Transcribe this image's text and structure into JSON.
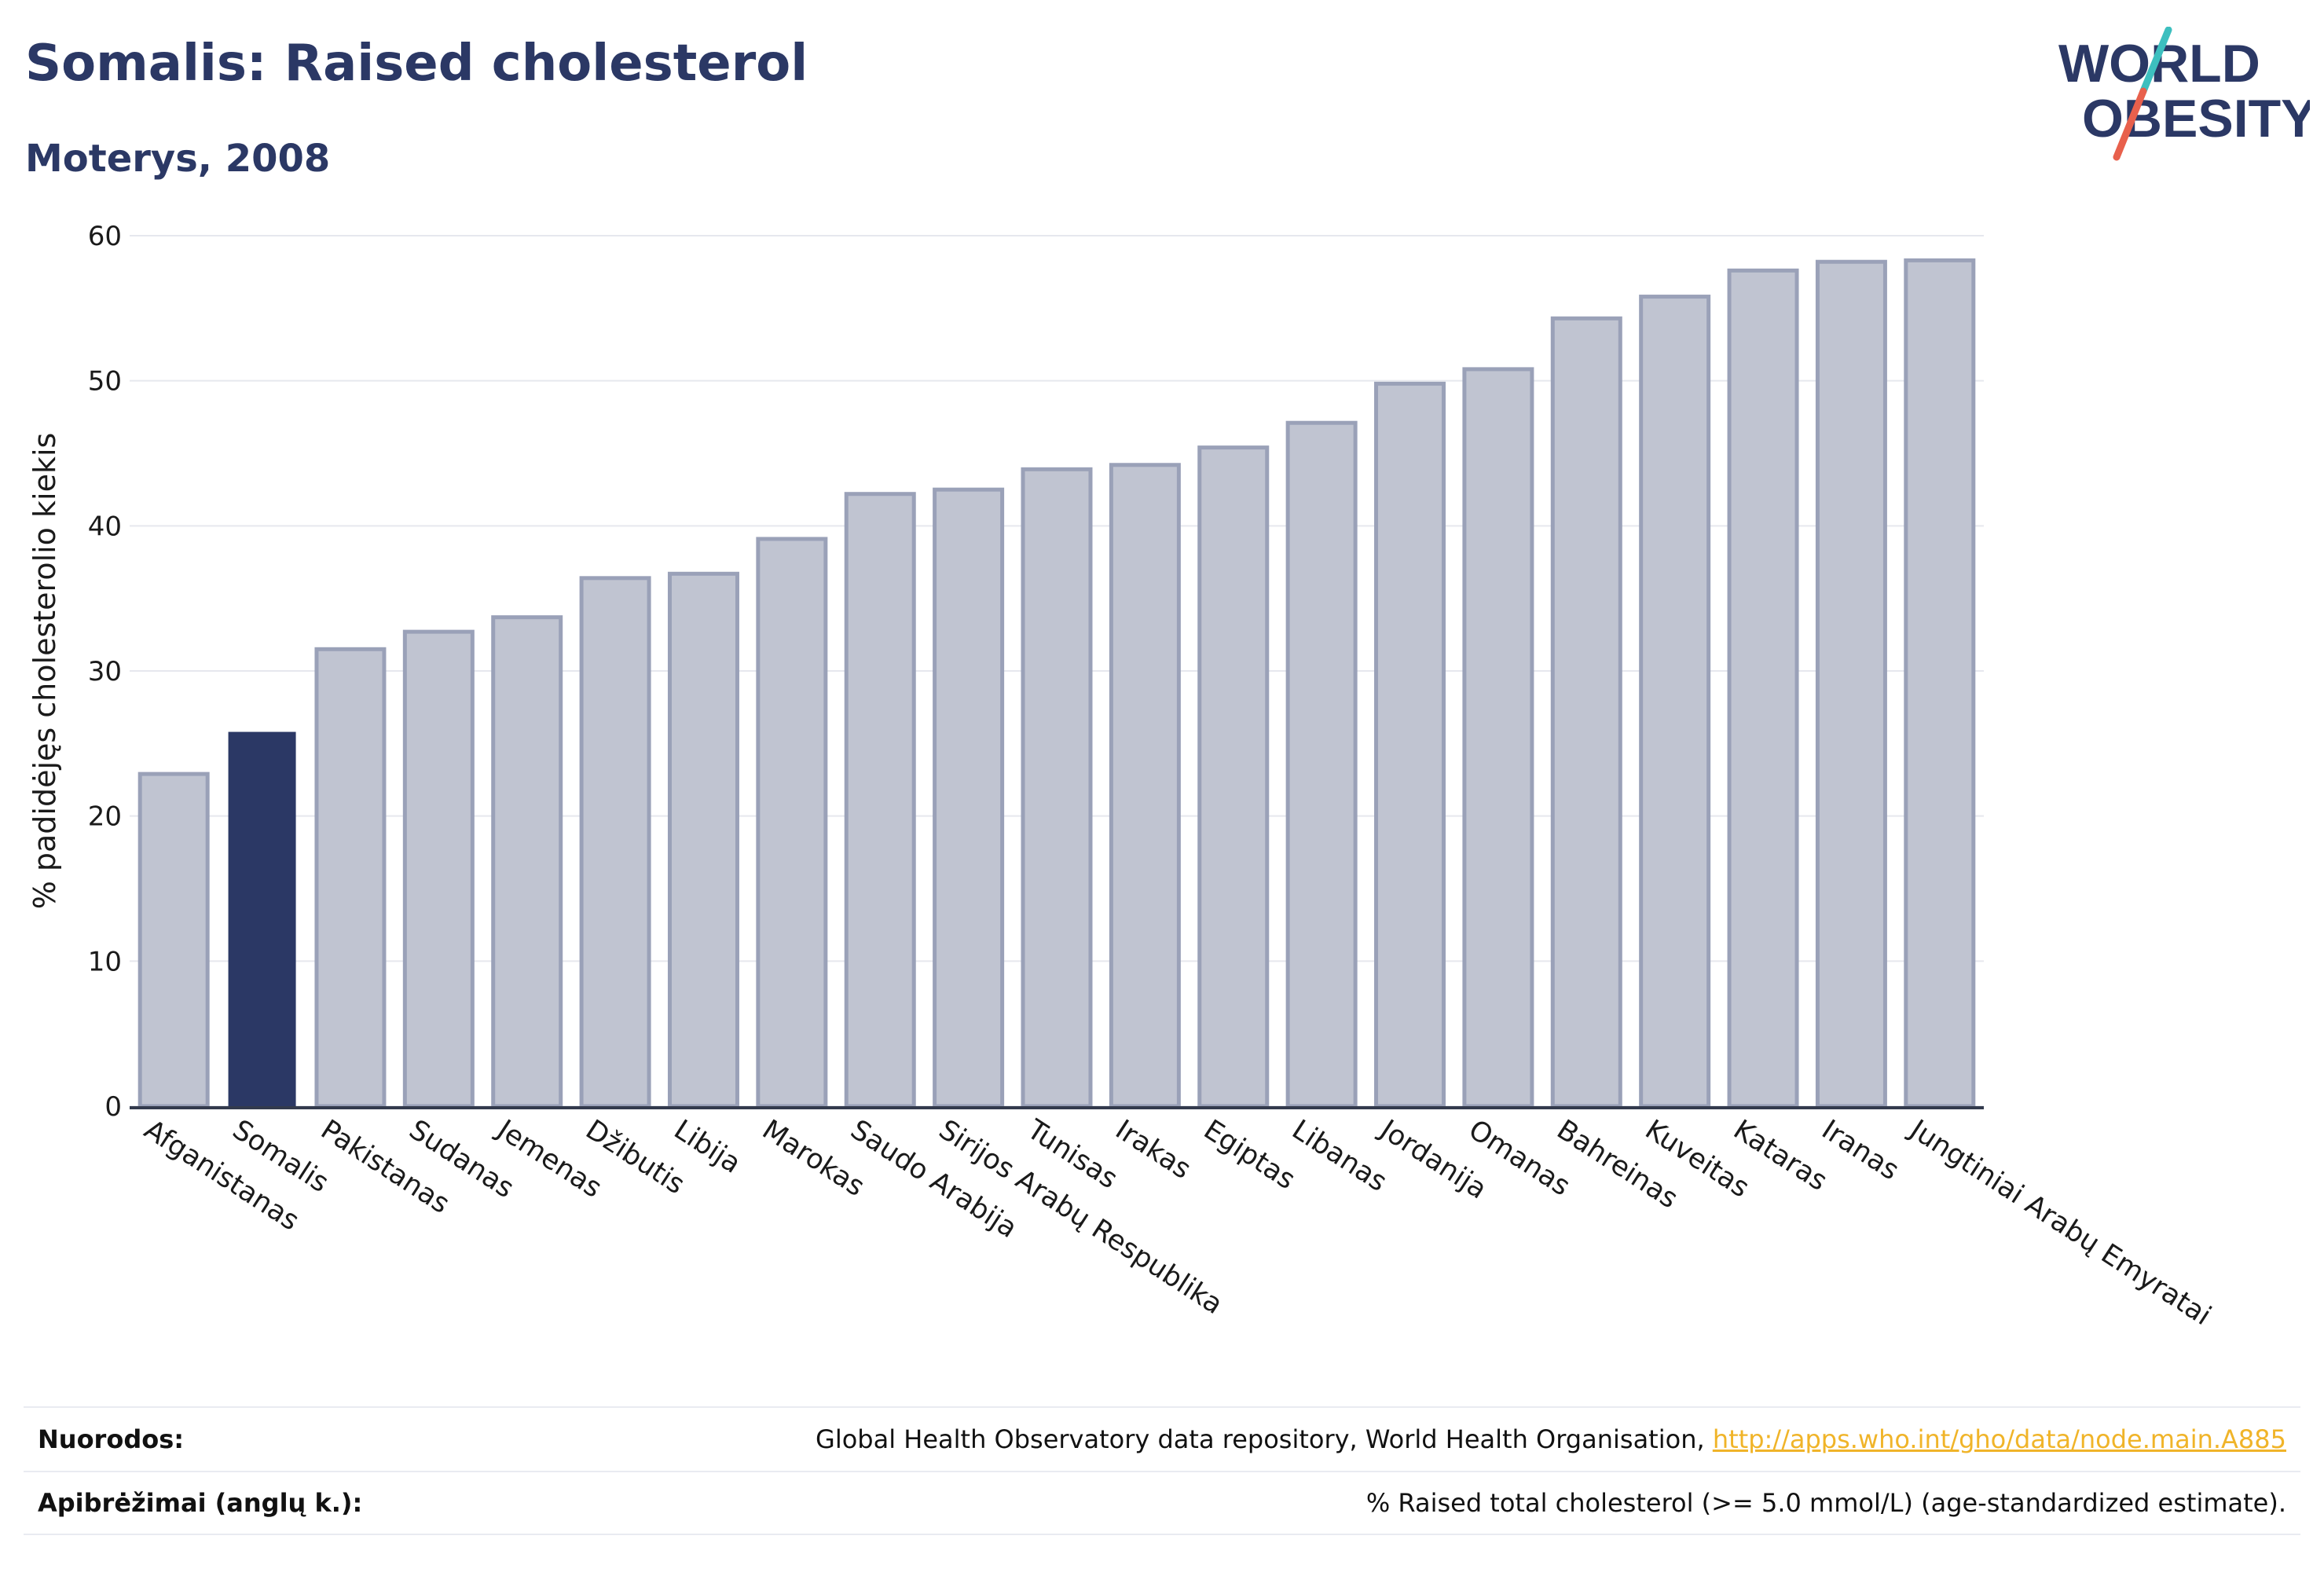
{
  "header": {
    "title": "Somalis: Raised cholesterol",
    "subtitle": "Moterys, 2008"
  },
  "logo": {
    "line1": "WORLD",
    "line2": "OBESITY",
    "slash_colors": [
      "#3dbfbf",
      "#e8604c"
    ]
  },
  "colors": {
    "bar": "#c0c4d1",
    "bar_border": "#9aa1b8",
    "highlight": "#2b3865",
    "text_primary": "#2b3865",
    "link": "#f0b429"
  },
  "chart_data": {
    "type": "bar",
    "categories": [
      "Afganistanas",
      "Somalis",
      "Pakistanas",
      "Sudanas",
      "Jemenas",
      "Džibutis",
      "Libija",
      "Marokas",
      "Saudo Arabija",
      "Sirijos Arabų Respublika",
      "Tunisas",
      "Irakas",
      "Egiptas",
      "Libanas",
      "Jordanija",
      "Omanas",
      "Bahreinas",
      "Kuveitas",
      "Kataras",
      "Iranas",
      "Jungtiniai Arabų Emyratai"
    ],
    "values": [
      22.9,
      25.8,
      31.5,
      32.7,
      33.7,
      36.4,
      36.7,
      39.1,
      42.2,
      42.5,
      43.9,
      44.2,
      45.4,
      47.1,
      49.8,
      50.8,
      54.3,
      55.8,
      57.6,
      58.2,
      58.3
    ],
    "highlight": "Somalis",
    "title": "Somalis: Raised cholesterol",
    "subtitle": "Moterys, 2008",
    "xlabel": "",
    "ylabel": "% padidėjęs cholesterolio kiekis",
    "ylim": [
      0,
      60
    ],
    "yticks": [
      0,
      10,
      20,
      30,
      40,
      50,
      60
    ],
    "grid": true,
    "legend": "none"
  },
  "footer": {
    "sources_label": "Nuorodos:",
    "sources_text": "Global Health Observatory data repository, World Health Organisation, ",
    "sources_link": "http://apps.who.int/gho/data/node.main.A885",
    "definitions_label": "Apibrėžimai (anglų k.):",
    "definitions_text": "% Raised total cholesterol (>= 5.0 mmol/L) (age-standardized estimate)."
  }
}
